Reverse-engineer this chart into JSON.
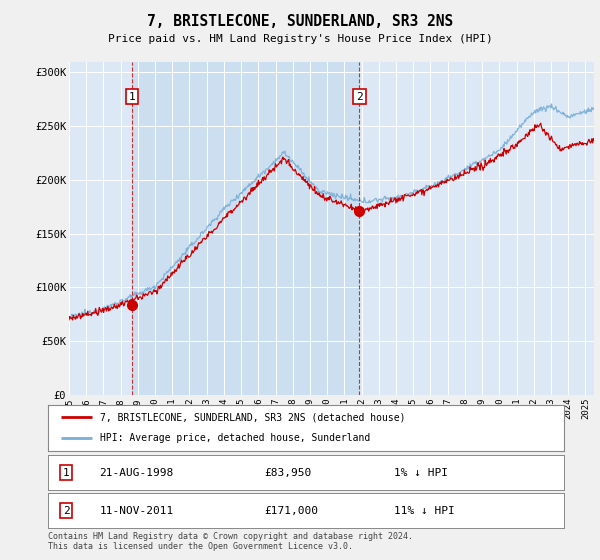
{
  "title": "7, BRISTLECONE, SUNDERLAND, SR3 2NS",
  "subtitle": "Price paid vs. HM Land Registry's House Price Index (HPI)",
  "fig_bg_color": "#f0f0f0",
  "plot_bg_color": "#dce8f5",
  "highlight_bg_color": "#ccdff0",
  "ylabel_ticks": [
    "£0",
    "£50K",
    "£100K",
    "£150K",
    "£200K",
    "£250K",
    "£300K"
  ],
  "ytick_values": [
    0,
    50000,
    100000,
    150000,
    200000,
    250000,
    300000
  ],
  "ylim": [
    0,
    310000
  ],
  "xlim_start": 1995.0,
  "xlim_end": 2025.5,
  "xtick_years": [
    1995,
    1996,
    1997,
    1998,
    1999,
    2000,
    2001,
    2002,
    2003,
    2004,
    2005,
    2006,
    2007,
    2008,
    2009,
    2010,
    2011,
    2012,
    2013,
    2014,
    2015,
    2016,
    2017,
    2018,
    2019,
    2020,
    2021,
    2022,
    2023,
    2024,
    2025
  ],
  "sale1_x": 1998.64,
  "sale1_y": 83950,
  "sale1_label": "1",
  "sale1_date": "21-AUG-1998",
  "sale1_price": "£83,950",
  "sale1_hpi": "1% ↓ HPI",
  "sale2_x": 2011.87,
  "sale2_y": 171000,
  "sale2_label": "2",
  "sale2_date": "11-NOV-2011",
  "sale2_price": "£171,000",
  "sale2_hpi": "11% ↓ HPI",
  "red_line_color": "#cc0000",
  "blue_line_color": "#7aaed6",
  "legend_label_red": "7, BRISTLECONE, SUNDERLAND, SR3 2NS (detached house)",
  "legend_label_blue": "HPI: Average price, detached house, Sunderland",
  "footnote": "Contains HM Land Registry data © Crown copyright and database right 2024.\nThis data is licensed under the Open Government Licence v3.0."
}
